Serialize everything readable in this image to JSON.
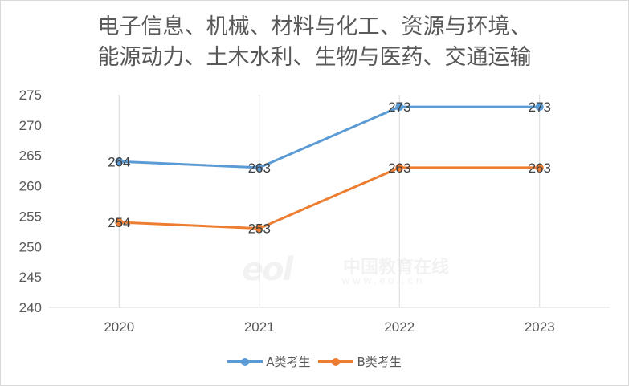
{
  "chart_data": {
    "type": "line",
    "title_lines": [
      "电子信息、机械、材料与化工、资源与环境、",
      "能源动力、土木水利、生物与医药、交通运输"
    ],
    "categories": [
      "2020",
      "2021",
      "2022",
      "2023"
    ],
    "series": [
      {
        "name": "A类考生",
        "values": [
          264,
          263,
          273,
          273
        ],
        "color": "#5b9bd5"
      },
      {
        "name": "B类考生",
        "values": [
          254,
          253,
          263,
          263
        ],
        "color": "#ed7d31"
      }
    ],
    "ylim": [
      240,
      275
    ],
    "yticks": [
      240,
      245,
      250,
      255,
      260,
      265,
      270,
      275
    ],
    "grid": "vertical category lines",
    "legend_position": "bottom"
  },
  "watermark": {
    "logo": "eol",
    "text": "中国教育在线",
    "url": "www.eol.cn"
  }
}
